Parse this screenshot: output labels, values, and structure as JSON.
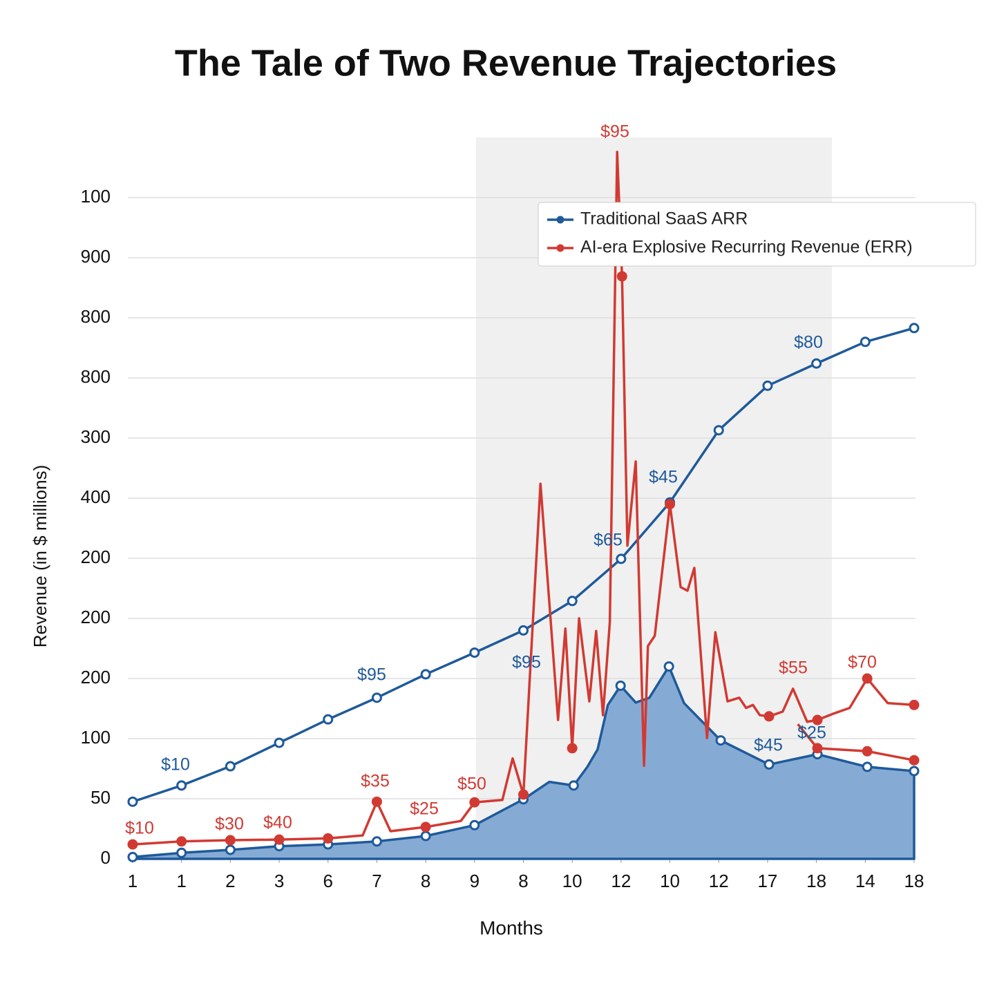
{
  "chart_data": {
    "type": "line",
    "title": "The Tale of Two Revenue Trajectories",
    "xlabel": "Months",
    "ylabel": "Revenue (in $ millions)",
    "xlim": [
      0,
      16
    ],
    "xticks": [
      {
        "value": 0,
        "label": "1"
      },
      1,
      2,
      3,
      {
        "value": 4,
        "label": "6"
      },
      {
        "value": 5,
        "label": "7"
      },
      {
        "value": 6,
        "label": "8"
      },
      {
        "value": 7,
        "label": "9"
      },
      8,
      {
        "value": 9,
        "label": "10"
      },
      {
        "value": 10,
        "label": "12"
      },
      {
        "value": 11,
        "label": "10"
      },
      12,
      {
        "value": 13,
        "label": "17"
      },
      {
        "value": 14,
        "label": "18"
      },
      {
        "value": 15,
        "label": "14"
      },
      {
        "value": 16,
        "label": "18"
      }
    ],
    "ylim": [
      0,
      1200
    ],
    "yticks": [
      0,
      {
        "value": 100,
        "label": "50"
      },
      {
        "value": 200,
        "label": "100"
      },
      {
        "value": 300,
        "label": "200"
      },
      {
        "value": 400,
        "label": "200"
      },
      {
        "value": 500,
        "label": "200"
      },
      {
        "value": 600,
        "label": "400"
      },
      {
        "value": 700,
        "label": "300"
      },
      {
        "value": 800,
        "label": "800"
      },
      {
        "value": 900,
        "label": "800"
      },
      {
        "value": 1000,
        "label": "900"
      },
      {
        "value": 1100,
        "label": "100"
      }
    ],
    "grid": true,
    "legend": "upper right",
    "series": [
      {
        "name": "Traditional SaaS ARR",
        "color": "#1f5a9a",
        "x": [
          0,
          1,
          2,
          3,
          4,
          5,
          6,
          7,
          8,
          9,
          10,
          11,
          12,
          13,
          14,
          15,
          16
        ],
        "values": [
          95,
          122,
          154,
          193,
          232,
          268,
          307,
          343,
          380,
          429,
          499,
          593,
          713,
          787,
          824,
          860,
          883
        ]
      },
      {
        "name": "AI-era Explosive Recurring Revenue (ERR)",
        "color": "#d13a32",
        "x": [
          0,
          1,
          2,
          3,
          4,
          4.71,
          5,
          5.28,
          6,
          6.72,
          7,
          7.57,
          7.78,
          8,
          8.35,
          8.71,
          8.86,
          9.0,
          9.14,
          9.35,
          9.49,
          9.63,
          9.77,
          9.92,
          10.02,
          10.13,
          10.3,
          10.47,
          10.55,
          10.69,
          11.0,
          11.22,
          11.36,
          11.5,
          11.76,
          11.93,
          12.18,
          12.42,
          12.56,
          12.7,
          12.84,
          13.03,
          13.31,
          13.52,
          13.81,
          14.02,
          14.33,
          14.68,
          15.04,
          15.46,
          16,
          null,
          13.62,
          14.02,
          15.04,
          16
        ],
        "values": [
          24,
          29,
          31,
          32,
          34,
          39,
          95,
          46,
          53,
          63,
          94,
          98,
          167,
          107,
          624,
          231,
          383,
          184,
          400,
          262,
          379,
          239,
          394,
          1176,
          969,
          521,
          661,
          155,
          354,
          371,
          590,
          452,
          446,
          484,
          201,
          377,
          262,
          268,
          251,
          256,
          239,
          237,
          245,
          283,
          228,
          231,
          241,
          251,
          300,
          259,
          256,
          null,
          224,
          184,
          179,
          164
        ]
      },
      {
        "type": "area",
        "color": "#1f5a9a",
        "x": [
          0,
          1,
          2,
          3,
          4,
          5,
          6,
          7,
          8,
          8.53,
          9.03,
          9.31,
          9.52,
          9.73,
          9.99,
          10.3,
          10.58,
          10.98,
          11.29,
          12.04,
          13.03,
          14.02,
          15.04,
          16
        ],
        "values": [
          3,
          10,
          15,
          21,
          24,
          29,
          38,
          56,
          99,
          128,
          122,
          153,
          182,
          256,
          288,
          260,
          268,
          320,
          259,
          197,
          157,
          174,
          153,
          146
        ]
      }
    ],
    "annotations": [
      {
        "text": "$95",
        "color": "#d13a32"
      },
      {
        "text": "$45",
        "color": "#1f5a9a"
      },
      {
        "text": "$80",
        "color": "#1f5a9a"
      },
      {
        "text": "$65",
        "color": "#1f5a9a"
      },
      {
        "text": "$95",
        "color": "#1f5a9a"
      },
      {
        "text": "$95",
        "color": "#1f5a9a"
      },
      {
        "text": "$10",
        "color": "#1f5a9a"
      },
      {
        "text": "$55",
        "color": "#d13a32"
      },
      {
        "text": "$70",
        "color": "#d13a32"
      },
      {
        "text": "$45",
        "color": "#1f5a9a"
      },
      {
        "text": "$25",
        "color": "#1f5a9a"
      },
      {
        "text": "$35",
        "color": "#d13a32"
      },
      {
        "text": "$50",
        "color": "#d13a32"
      },
      {
        "text": "$25",
        "color": "#d13a32"
      },
      {
        "text": "$10",
        "color": "#d13a32"
      },
      {
        "text": "$30",
        "color": "#d13a32"
      },
      {
        "text": "$40",
        "color": "#d13a32"
      }
    ]
  }
}
